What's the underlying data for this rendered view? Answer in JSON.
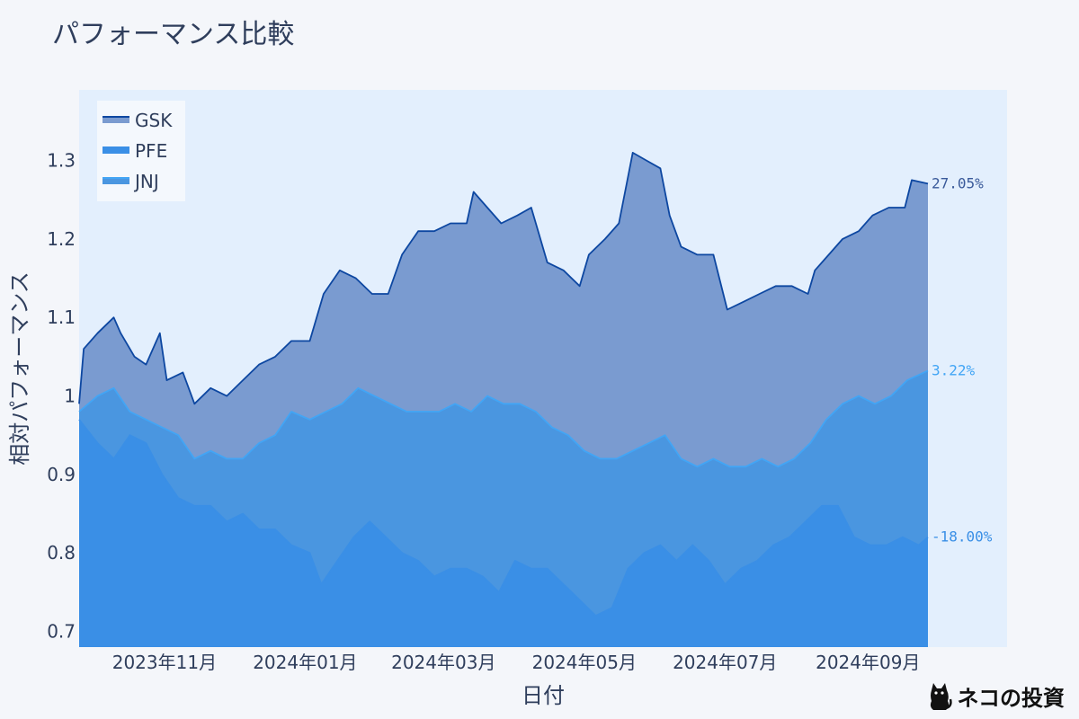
{
  "chart_data": {
    "type": "area",
    "title": "パフォーマンス比較",
    "xlabel": "日付",
    "ylabel": "相対パフォーマンス",
    "x_ticks": [
      "2023年11月",
      "2024年01月",
      "2024年03月",
      "2024年05月",
      "2024年07月",
      "2024年09月"
    ],
    "x_range": [
      "2023-09-25",
      "2024-09-27"
    ],
    "y_ticks": [
      "0.7",
      "0.8",
      "0.9",
      "1",
      "1.1",
      "1.2",
      "1.3"
    ],
    "ylim": [
      0.68,
      1.39
    ],
    "grid": false,
    "legend_placement": "top-left",
    "series": [
      {
        "name": "GSK",
        "color": "#0d47a1",
        "fill": "#7a9bd0",
        "end_label": "27.05%",
        "end_label_color": "#3a5a9a",
        "points": [
          [
            "2023-09-25",
            0.99
          ],
          [
            "2023-09-27",
            1.06
          ],
          [
            "2023-10-03",
            1.08
          ],
          [
            "2023-10-10",
            1.1
          ],
          [
            "2023-10-13",
            1.08
          ],
          [
            "2023-10-19",
            1.05
          ],
          [
            "2023-10-24",
            1.04
          ],
          [
            "2023-10-30",
            1.08
          ],
          [
            "2023-11-02",
            1.02
          ],
          [
            "2023-11-09",
            1.03
          ],
          [
            "2023-11-14",
            0.99
          ],
          [
            "2023-11-21",
            1.01
          ],
          [
            "2023-11-28",
            1.0
          ],
          [
            "2023-12-05",
            1.02
          ],
          [
            "2023-12-12",
            1.04
          ],
          [
            "2023-12-19",
            1.05
          ],
          [
            "2023-12-26",
            1.07
          ],
          [
            "2024-01-03",
            1.07
          ],
          [
            "2024-01-09",
            1.13
          ],
          [
            "2024-01-16",
            1.16
          ],
          [
            "2024-01-23",
            1.15
          ],
          [
            "2024-01-30",
            1.13
          ],
          [
            "2024-02-06",
            1.13
          ],
          [
            "2024-02-12",
            1.18
          ],
          [
            "2024-02-19",
            1.21
          ],
          [
            "2024-02-26",
            1.21
          ],
          [
            "2024-03-04",
            1.22
          ],
          [
            "2024-03-11",
            1.22
          ],
          [
            "2024-03-14",
            1.26
          ],
          [
            "2024-03-20",
            1.24
          ],
          [
            "2024-03-26",
            1.22
          ],
          [
            "2024-04-02",
            1.23
          ],
          [
            "2024-04-08",
            1.24
          ],
          [
            "2024-04-15",
            1.17
          ],
          [
            "2024-04-22",
            1.16
          ],
          [
            "2024-04-29",
            1.14
          ],
          [
            "2024-05-03",
            1.18
          ],
          [
            "2024-05-10",
            1.2
          ],
          [
            "2024-05-16",
            1.22
          ],
          [
            "2024-05-22",
            1.31
          ],
          [
            "2024-05-28",
            1.3
          ],
          [
            "2024-06-03",
            1.29
          ],
          [
            "2024-06-07",
            1.23
          ],
          [
            "2024-06-12",
            1.19
          ],
          [
            "2024-06-19",
            1.18
          ],
          [
            "2024-06-26",
            1.18
          ],
          [
            "2024-07-02",
            1.11
          ],
          [
            "2024-07-09",
            1.12
          ],
          [
            "2024-07-16",
            1.13
          ],
          [
            "2024-07-23",
            1.14
          ],
          [
            "2024-07-30",
            1.14
          ],
          [
            "2024-08-06",
            1.13
          ],
          [
            "2024-08-09",
            1.16
          ],
          [
            "2024-08-15",
            1.18
          ],
          [
            "2024-08-21",
            1.2
          ],
          [
            "2024-08-28",
            1.21
          ],
          [
            "2024-09-03",
            1.23
          ],
          [
            "2024-09-10",
            1.24
          ],
          [
            "2024-09-17",
            1.24
          ],
          [
            "2024-09-20",
            1.275
          ],
          [
            "2024-09-27",
            1.2705
          ]
        ]
      },
      {
        "name": "PFE",
        "color": "#3a8fe6",
        "fill": "#3a8fe6",
        "end_label": "-18.00%",
        "end_label_color": "#3a8fe6",
        "points": [
          [
            "2023-09-25",
            0.97
          ],
          [
            "2023-10-03",
            0.94
          ],
          [
            "2023-10-10",
            0.92
          ],
          [
            "2023-10-17",
            0.95
          ],
          [
            "2023-10-24",
            0.94
          ],
          [
            "2023-10-31",
            0.9
          ],
          [
            "2023-11-07",
            0.87
          ],
          [
            "2023-11-14",
            0.86
          ],
          [
            "2023-11-21",
            0.86
          ],
          [
            "2023-11-28",
            0.84
          ],
          [
            "2023-12-05",
            0.85
          ],
          [
            "2023-12-12",
            0.83
          ],
          [
            "2023-12-19",
            0.83
          ],
          [
            "2023-12-26",
            0.81
          ],
          [
            "2024-01-03",
            0.8
          ],
          [
            "2024-01-08",
            0.76
          ],
          [
            "2024-01-15",
            0.79
          ],
          [
            "2024-01-22",
            0.82
          ],
          [
            "2024-01-29",
            0.84
          ],
          [
            "2024-02-05",
            0.82
          ],
          [
            "2024-02-12",
            0.8
          ],
          [
            "2024-02-19",
            0.79
          ],
          [
            "2024-02-26",
            0.77
          ],
          [
            "2024-03-04",
            0.78
          ],
          [
            "2024-03-11",
            0.78
          ],
          [
            "2024-03-18",
            0.77
          ],
          [
            "2024-03-25",
            0.75
          ],
          [
            "2024-04-01",
            0.79
          ],
          [
            "2024-04-08",
            0.78
          ],
          [
            "2024-04-15",
            0.78
          ],
          [
            "2024-04-22",
            0.76
          ],
          [
            "2024-04-29",
            0.74
          ],
          [
            "2024-05-06",
            0.72
          ],
          [
            "2024-05-13",
            0.73
          ],
          [
            "2024-05-20",
            0.78
          ],
          [
            "2024-05-27",
            0.8
          ],
          [
            "2024-06-03",
            0.81
          ],
          [
            "2024-06-10",
            0.79
          ],
          [
            "2024-06-17",
            0.81
          ],
          [
            "2024-06-24",
            0.79
          ],
          [
            "2024-07-01",
            0.76
          ],
          [
            "2024-07-08",
            0.78
          ],
          [
            "2024-07-15",
            0.79
          ],
          [
            "2024-07-22",
            0.81
          ],
          [
            "2024-07-29",
            0.82
          ],
          [
            "2024-08-05",
            0.84
          ],
          [
            "2024-08-12",
            0.86
          ],
          [
            "2024-08-19",
            0.86
          ],
          [
            "2024-08-26",
            0.82
          ],
          [
            "2024-09-02",
            0.81
          ],
          [
            "2024-09-09",
            0.81
          ],
          [
            "2024-09-16",
            0.82
          ],
          [
            "2024-09-23",
            0.81
          ],
          [
            "2024-09-27",
            0.82
          ]
        ]
      },
      {
        "name": "JNJ",
        "color": "#42a5f5",
        "fill": "#4a96e0",
        "end_label": "3.22%",
        "end_label_color": "#42a5f5",
        "points": [
          [
            "2023-09-25",
            0.98
          ],
          [
            "2023-10-03",
            1.0
          ],
          [
            "2023-10-10",
            1.01
          ],
          [
            "2023-10-17",
            0.98
          ],
          [
            "2023-10-24",
            0.97
          ],
          [
            "2023-10-31",
            0.96
          ],
          [
            "2023-11-07",
            0.95
          ],
          [
            "2023-11-14",
            0.92
          ],
          [
            "2023-11-21",
            0.93
          ],
          [
            "2023-11-28",
            0.92
          ],
          [
            "2023-12-05",
            0.92
          ],
          [
            "2023-12-12",
            0.94
          ],
          [
            "2023-12-19",
            0.95
          ],
          [
            "2023-12-26",
            0.98
          ],
          [
            "2024-01-03",
            0.97
          ],
          [
            "2024-01-10",
            0.98
          ],
          [
            "2024-01-17",
            0.99
          ],
          [
            "2024-01-24",
            1.01
          ],
          [
            "2024-01-31",
            1.0
          ],
          [
            "2024-02-07",
            0.99
          ],
          [
            "2024-02-14",
            0.98
          ],
          [
            "2024-02-21",
            0.98
          ],
          [
            "2024-02-28",
            0.98
          ],
          [
            "2024-03-06",
            0.99
          ],
          [
            "2024-03-13",
            0.98
          ],
          [
            "2024-03-20",
            1.0
          ],
          [
            "2024-03-27",
            0.99
          ],
          [
            "2024-04-03",
            0.99
          ],
          [
            "2024-04-10",
            0.98
          ],
          [
            "2024-04-17",
            0.96
          ],
          [
            "2024-04-24",
            0.95
          ],
          [
            "2024-05-01",
            0.93
          ],
          [
            "2024-05-08",
            0.92
          ],
          [
            "2024-05-15",
            0.92
          ],
          [
            "2024-05-22",
            0.93
          ],
          [
            "2024-05-29",
            0.94
          ],
          [
            "2024-06-05",
            0.95
          ],
          [
            "2024-06-12",
            0.92
          ],
          [
            "2024-06-19",
            0.91
          ],
          [
            "2024-06-26",
            0.92
          ],
          [
            "2024-07-03",
            0.91
          ],
          [
            "2024-07-10",
            0.91
          ],
          [
            "2024-07-17",
            0.92
          ],
          [
            "2024-07-24",
            0.91
          ],
          [
            "2024-07-31",
            0.92
          ],
          [
            "2024-08-07",
            0.94
          ],
          [
            "2024-08-14",
            0.97
          ],
          [
            "2024-08-21",
            0.99
          ],
          [
            "2024-08-28",
            1.0
          ],
          [
            "2024-09-04",
            0.99
          ],
          [
            "2024-09-11",
            1.0
          ],
          [
            "2024-09-18",
            1.02
          ],
          [
            "2024-09-27",
            1.0322
          ]
        ]
      }
    ]
  },
  "watermark": {
    "text": "ネコの投資",
    "icon": "cat-icon"
  }
}
